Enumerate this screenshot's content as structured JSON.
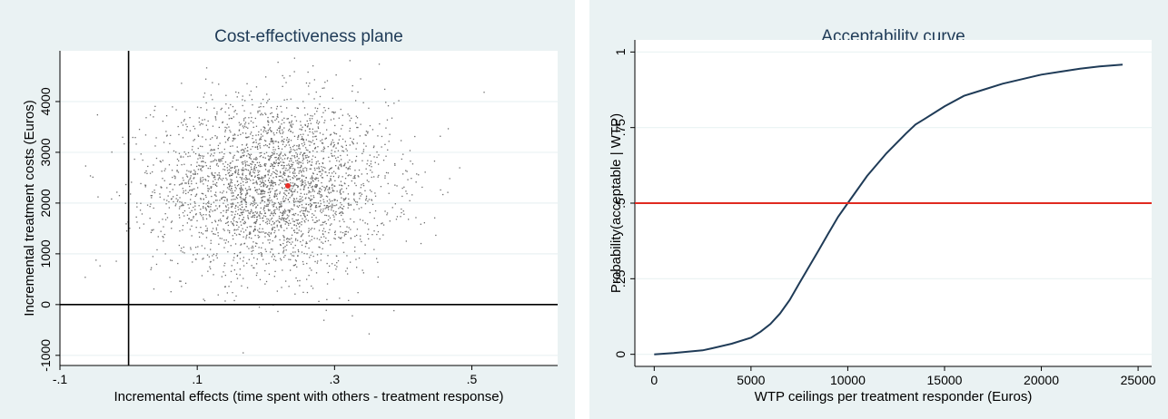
{
  "chart_data": [
    {
      "type": "scatter",
      "title": "Cost-effectiveness plane",
      "xlabel": "Incremental effects (time spent with others - treatment response)",
      "ylabel": "Incremental treatment costs (Euros)",
      "xlim": [
        -0.1,
        0.625
      ],
      "ylim": [
        -1200,
        5000
      ],
      "xticks": [
        -0.1,
        0.1,
        0.3,
        0.5
      ],
      "xtick_labels": [
        "-.1",
        ".1",
        ".3",
        ".5"
      ],
      "yticks": [
        -1000,
        0,
        1000,
        2000,
        3000,
        4000
      ],
      "ytick_labels": [
        "-1000",
        "0",
        "1000",
        "2000",
        "3000",
        "4000"
      ],
      "grid": true,
      "reference_lines": [
        {
          "axis": "x",
          "value": 0
        },
        {
          "axis": "y",
          "value": 0
        }
      ],
      "cloud": {
        "n": 3000,
        "mean_x": 0.21,
        "sd_x": 0.085,
        "mean_y": 2330,
        "sd_y": 850,
        "color": "#6b6b6b"
      },
      "point_estimate": {
        "x": 0.232,
        "y": 2340,
        "color": "#e8302a"
      }
    },
    {
      "type": "line",
      "title": "Acceptability curve",
      "xlabel": "WTP ceilings per treatment responder (Euros)",
      "ylabel": "Probability(acceptable | WTP)",
      "xlim": [
        -1000,
        25700
      ],
      "ylim": [
        -0.04,
        1.04
      ],
      "xticks": [
        0,
        5000,
        10000,
        15000,
        20000,
        25000
      ],
      "xtick_labels": [
        "0",
        "5000",
        "10000",
        "15000",
        "20000",
        "25000"
      ],
      "yticks": [
        0,
        0.25,
        0.5,
        0.75,
        1
      ],
      "ytick_labels": [
        "0",
        ".25",
        ".5",
        ".75",
        "1"
      ],
      "grid": true,
      "series": [
        {
          "color": "#1f3b57",
          "x": [
            0,
            1000,
            2000,
            2500,
            3000,
            4000,
            5000,
            5500,
            6000,
            6500,
            7000,
            7500,
            8000,
            8500,
            9000,
            9500,
            10000,
            11000,
            12000,
            13000,
            13500,
            14000,
            15000,
            16000,
            17000,
            18000,
            19000,
            20000,
            21000,
            22000,
            23000,
            24200
          ],
          "y": [
            0.0,
            0.004,
            0.01,
            0.013,
            0.02,
            0.035,
            0.055,
            0.075,
            0.1,
            0.135,
            0.18,
            0.235,
            0.29,
            0.345,
            0.4,
            0.455,
            0.5,
            0.59,
            0.665,
            0.73,
            0.76,
            0.78,
            0.82,
            0.855,
            0.875,
            0.895,
            0.91,
            0.925,
            0.935,
            0.945,
            0.952,
            0.958
          ]
        }
      ],
      "reference_line": {
        "axis": "y",
        "value": 0.5,
        "color": "#e02a20"
      }
    }
  ]
}
